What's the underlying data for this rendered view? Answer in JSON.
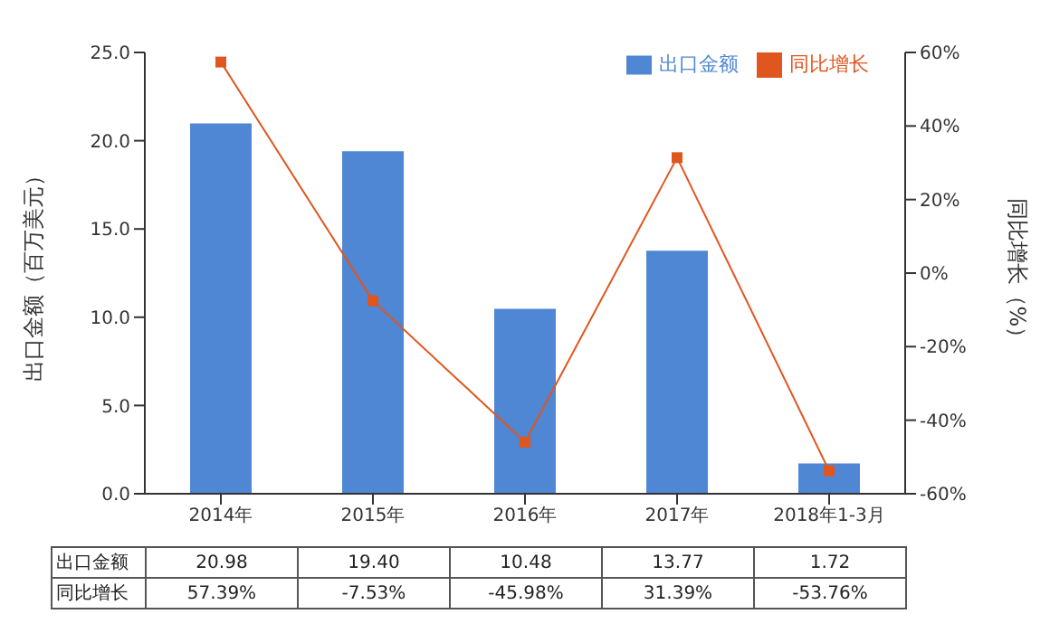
{
  "chart_data": {
    "type": "bar",
    "categories": [
      "2014年",
      "2015年",
      "2016年",
      "2017年",
      "2018年1-3月"
    ],
    "series": [
      {
        "name": "出口金额",
        "color": "#4f87d4",
        "values": [
          20.98,
          19.4,
          10.48,
          13.77,
          1.72
        ],
        "value_labels": [
          "20.98",
          "19.40",
          "10.48",
          "13.77",
          "1.72"
        ]
      },
      {
        "name": "同比增长",
        "type": "line",
        "axis": "y2",
        "color": "#e0561f",
        "values": [
          57.39,
          -7.53,
          -45.98,
          31.39,
          -53.76
        ],
        "value_labels": [
          "57.39%",
          "-7.53%",
          "-45.98%",
          "31.39%",
          "-53.76%"
        ]
      }
    ],
    "ylabel": "出口金额（百万美元）",
    "y2label": "同比增长（%）",
    "ylim": [
      0,
      25
    ],
    "yticks": [
      {
        "value": 0,
        "label": "0.0"
      },
      {
        "value": 5,
        "label": "5.0"
      },
      {
        "value": 10,
        "label": "10.0"
      },
      {
        "value": 15,
        "label": "15.0"
      },
      {
        "value": 20,
        "label": "20.0"
      },
      {
        "value": 25,
        "label": "25.0"
      }
    ],
    "y2lim": [
      -60,
      60
    ],
    "y2ticks": [
      {
        "value": -60,
        "label": "-60%"
      },
      {
        "value": -40,
        "label": "-40%"
      },
      {
        "value": -20,
        "label": "-20%"
      },
      {
        "value": 0,
        "label": "0%"
      },
      {
        "value": 20,
        "label": "20%"
      },
      {
        "value": 40,
        "label": "40%"
      },
      {
        "value": 60,
        "label": "60%"
      }
    ],
    "grid": false,
    "legend": "top right",
    "marker": "square",
    "line_style": "solid"
  }
}
